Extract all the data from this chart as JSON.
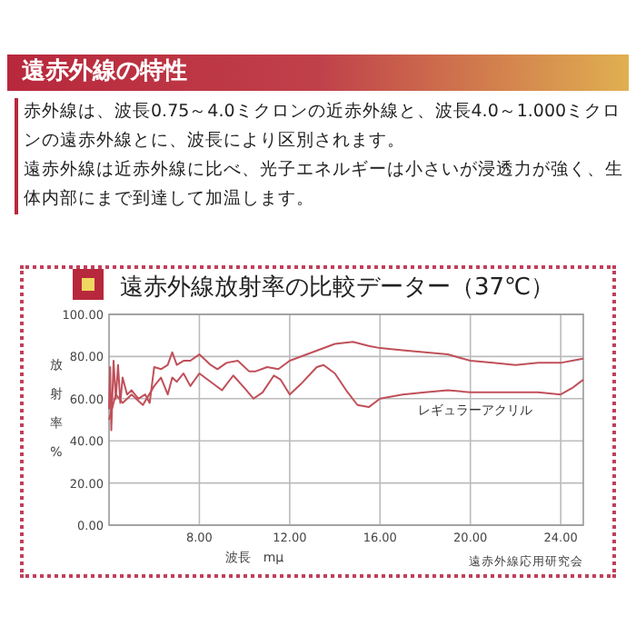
{
  "chart_data": {
    "type": "line",
    "title": "遠赤外線放射率の比較データー（37℃）",
    "annotations": [
      "遠赤外線の特性",
      "赤外線は、波長0.75～4.0ミクロンの近赤外線と、波長4.0～1.000ミクロンの遠赤外線とに、波長により区別されます。",
      "遠赤外線は近赤外線に比べ、光子エネルギーは小さいが浸透力が強く、生体内部にまで到達して加温します。",
      "遠赤外線応用研究会"
    ],
    "xlabel": "波長　mμ",
    "ylabel": "放射率%",
    "xlim": [
      4,
      25
    ],
    "ylim": [
      0,
      100
    ],
    "xticks": [
      {
        "value": 8,
        "label": "8.00"
      },
      {
        "value": 12,
        "label": "12.00"
      },
      {
        "value": 16,
        "label": "16.00"
      },
      {
        "value": 20,
        "label": "20.00"
      },
      {
        "value": 24,
        "label": "24.00"
      }
    ],
    "yticks": [
      {
        "value": 0,
        "label": "0.00"
      },
      {
        "value": 20,
        "label": "20.00"
      },
      {
        "value": 40,
        "label": "40.00"
      },
      {
        "value": 60,
        "label": "60.00"
      },
      {
        "value": 80,
        "label": "80.00"
      },
      {
        "value": 100,
        "label": "100.00"
      }
    ],
    "grid": true,
    "line_style": "solid",
    "series": [
      {
        "color": "#c0505a",
        "x": [
          4.0,
          4.05,
          4.1,
          4.2,
          4.3,
          4.4,
          4.5,
          4.6,
          4.8,
          5.0,
          5.3,
          5.6,
          5.8,
          6.0,
          6.3,
          6.6,
          6.8,
          7.0,
          7.3,
          7.6,
          8.0,
          8.5,
          8.8,
          9.2,
          9.7,
          10.2,
          10.5,
          11.0,
          11.5,
          12.0,
          13.0,
          14.0,
          14.8,
          15.5,
          16.0,
          17,
          18,
          19,
          20,
          21,
          22,
          23,
          24,
          24.5,
          25
        ],
        "values": [
          55,
          75,
          45,
          78,
          60,
          76,
          58,
          70,
          62,
          64,
          60,
          62,
          58,
          75,
          74,
          76,
          82,
          76,
          78,
          78,
          81,
          76,
          74,
          77,
          78,
          73,
          73,
          75,
          74,
          78,
          82,
          86,
          87,
          85,
          84,
          83,
          82,
          81,
          78,
          77,
          76,
          77,
          77,
          78,
          79
        ]
      },
      {
        "name": "レギュラーアクリル",
        "color": "#c0505a",
        "x": [
          4.0,
          4.3,
          4.6,
          5.0,
          5.5,
          6.0,
          6.3,
          6.6,
          6.8,
          7.0,
          7.3,
          7.6,
          8.0,
          8.5,
          9.0,
          9.5,
          10.0,
          10.4,
          10.8,
          11.3,
          11.6,
          12.0,
          12.5,
          13.2,
          13.5,
          14.0,
          14.5,
          15.0,
          15.5,
          16.0,
          17,
          18,
          19,
          20,
          21,
          22,
          23,
          24,
          24.5,
          25
        ],
        "values": [
          50,
          62,
          58,
          62,
          57,
          66,
          70,
          62,
          70,
          68,
          72,
          66,
          72,
          68,
          64,
          71,
          65,
          60,
          63,
          71,
          69,
          62,
          67,
          75,
          76,
          72,
          64,
          57,
          56,
          60,
          62,
          63,
          64,
          63,
          63,
          63,
          63,
          62,
          65,
          69
        ]
      }
    ]
  }
}
